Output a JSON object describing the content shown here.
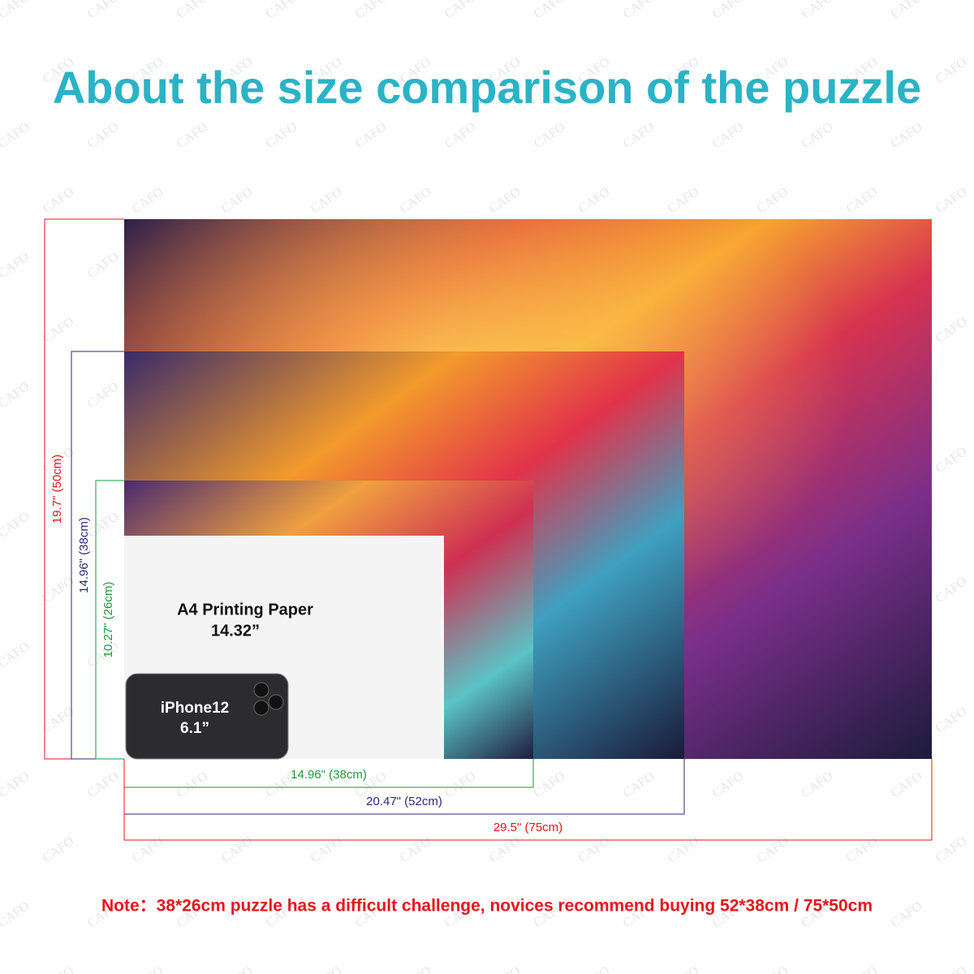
{
  "title": "About the size comparison of the puzzle",
  "watermark": "CAFO",
  "vertical_dimensions": [
    "19.7\" (50cm)",
    "14.96\" (38cm)",
    "10.27\" (26cm)"
  ],
  "horizontal_dimensions": [
    "14.96\" (38cm)",
    "20.47\" (52cm)",
    "29.5\" (75cm)"
  ],
  "paper": {
    "label": "A4 Printing Paper",
    "size": "14.32”"
  },
  "phone": {
    "label": "iPhone12",
    "size": "6.1”"
  },
  "note": "Note：38*26cm puzzle has a difficult challenge, novices recommend buying 52*38cm / 75*50cm"
}
